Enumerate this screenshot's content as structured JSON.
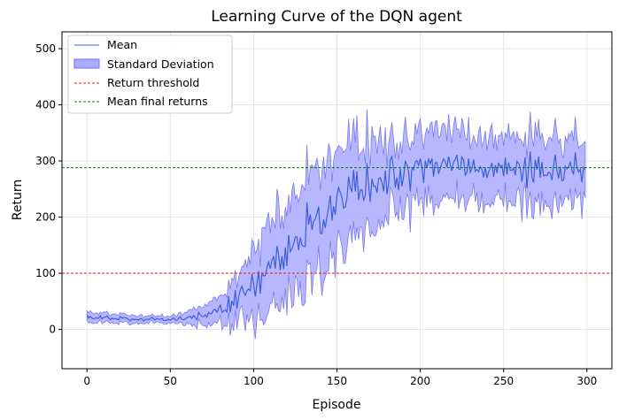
{
  "chart_data": {
    "type": "line",
    "title": "Learning Curve of the DQN agent",
    "xlabel": "Episode",
    "ylabel": "Return",
    "xlim": [
      -15,
      315
    ],
    "ylim": [
      -70,
      530
    ],
    "xticks": [
      0,
      50,
      100,
      150,
      200,
      250,
      300
    ],
    "yticks": [
      0,
      100,
      200,
      300,
      400,
      500
    ],
    "grid": true,
    "legend_position": "top-left",
    "legend": [
      "Mean",
      "Standard Deviation",
      "Return threshold",
      "Mean final returns"
    ],
    "mean_anchors": [
      [
        0,
        20
      ],
      [
        10,
        22
      ],
      [
        20,
        20
      ],
      [
        30,
        18
      ],
      [
        40,
        18
      ],
      [
        50,
        18
      ],
      [
        60,
        20
      ],
      [
        70,
        25
      ],
      [
        80,
        35
      ],
      [
        90,
        55
      ],
      [
        100,
        80
      ],
      [
        110,
        110
      ],
      [
        120,
        140
      ],
      [
        130,
        170
      ],
      [
        140,
        200
      ],
      [
        150,
        220
      ],
      [
        160,
        240
      ],
      [
        170,
        255
      ],
      [
        180,
        268
      ],
      [
        190,
        278
      ],
      [
        200,
        283
      ],
      [
        210,
        290
      ],
      [
        220,
        288
      ],
      [
        230,
        287
      ],
      [
        240,
        283
      ],
      [
        250,
        285
      ],
      [
        260,
        285
      ],
      [
        270,
        287
      ],
      [
        280,
        285
      ],
      [
        290,
        290
      ],
      [
        299,
        285
      ]
    ],
    "std_anchors": [
      [
        0,
        8
      ],
      [
        20,
        7
      ],
      [
        40,
        6
      ],
      [
        50,
        7
      ],
      [
        60,
        10
      ],
      [
        70,
        15
      ],
      [
        80,
        25
      ],
      [
        90,
        40
      ],
      [
        100,
        60
      ],
      [
        110,
        75
      ],
      [
        120,
        85
      ],
      [
        130,
        90
      ],
      [
        140,
        95
      ],
      [
        150,
        90
      ],
      [
        160,
        85
      ],
      [
        170,
        75
      ],
      [
        180,
        70
      ],
      [
        190,
        65
      ],
      [
        200,
        62
      ],
      [
        220,
        60
      ],
      [
        240,
        55
      ],
      [
        260,
        55
      ],
      [
        280,
        55
      ],
      [
        299,
        55
      ]
    ],
    "n_episodes": 300,
    "series": [
      {
        "name": "Mean",
        "color": "#3d5fd9"
      },
      {
        "name": "Standard Deviation",
        "color": "#aaaaff"
      },
      {
        "name": "Return threshold",
        "value": 100,
        "color": "#e41a1c"
      },
      {
        "name": "Mean final returns",
        "value": 288,
        "color": "#008000"
      }
    ]
  }
}
